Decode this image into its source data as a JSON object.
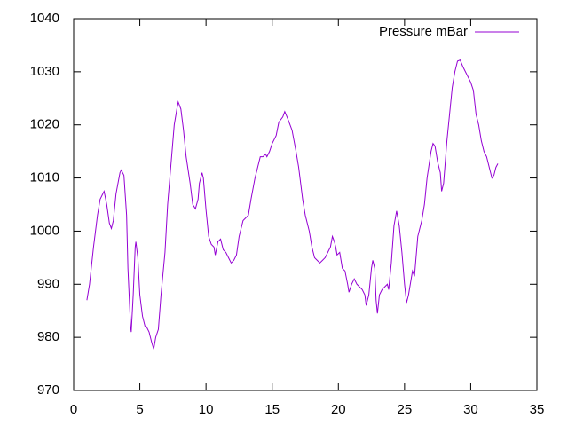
{
  "chart_data": {
    "type": "line",
    "x": [
      1,
      1.2,
      1.5,
      1.8,
      2.0,
      2.2,
      2.3,
      2.5,
      2.7,
      2.85,
      3.0,
      3.2,
      3.5,
      3.6,
      3.8,
      4.0,
      4.1,
      4.3,
      4.35,
      4.5,
      4.65,
      4.7,
      4.85,
      5.0,
      5.2,
      5.4,
      5.5,
      5.7,
      5.9,
      6.05,
      6.2,
      6.4,
      6.6,
      6.9,
      7.1,
      7.4,
      7.6,
      7.8,
      7.9,
      8.1,
      8.3,
      8.5,
      8.8,
      9.0,
      9.2,
      9.4,
      9.5,
      9.7,
      9.8,
      10.0,
      10.2,
      10.4,
      10.6,
      10.7,
      10.9,
      11.1,
      11.3,
      11.5,
      11.7,
      11.9,
      12.1,
      12.3,
      12.5,
      12.8,
      13.0,
      13.2,
      13.4,
      13.7,
      13.9,
      14.1,
      14.3,
      14.5,
      14.6,
      14.8,
      15.0,
      15.3,
      15.5,
      15.8,
      15.95,
      16.2,
      16.5,
      16.8,
      17.0,
      17.3,
      17.5,
      17.8,
      18.0,
      18.2,
      18.4,
      18.6,
      18.8,
      19.0,
      19.2,
      19.4,
      19.55,
      19.7,
      19.8,
      19.9,
      20.1,
      20.3,
      20.5,
      20.7,
      20.8,
      21.0,
      21.2,
      21.4,
      21.6,
      21.8,
      22.0,
      22.1,
      22.3,
      22.5,
      22.6,
      22.75,
      22.85,
      22.95,
      23.1,
      23.3,
      23.5,
      23.7,
      23.8,
      24.0,
      24.2,
      24.4,
      24.6,
      24.8,
      25.0,
      25.15,
      25.3,
      25.5,
      25.6,
      25.75,
      26.0,
      26.3,
      26.5,
      26.7,
      27.0,
      27.15,
      27.3,
      27.5,
      27.7,
      27.8,
      27.95,
      28.2,
      28.4,
      28.6,
      28.8,
      29.0,
      29.2,
      29.4,
      29.6,
      29.8,
      30.0,
      30.2,
      30.4,
      30.6,
      30.8,
      31.0,
      31.2,
      31.4,
      31.6,
      31.75,
      31.9,
      32.05
    ],
    "series": [
      {
        "name": "Pressure mBar",
        "color": "#9400d3",
        "values": [
          987,
          990,
          997,
          1003,
          1006,
          1007,
          1007.5,
          1005,
          1001.5,
          1000.5,
          1002,
          1007,
          1011,
          1011.5,
          1010.5,
          1003,
          993,
          982,
          981,
          988,
          997,
          998,
          995,
          988,
          984,
          982,
          982,
          981,
          979,
          977.8,
          980,
          981.5,
          988,
          996,
          1005,
          1014,
          1020,
          1023,
          1024.3,
          1023,
          1019,
          1014,
          1009,
          1005,
          1004.2,
          1006,
          1009,
          1011,
          1010,
          1004,
          999,
          997.5,
          997,
          995.5,
          998,
          998.5,
          996.5,
          996,
          995,
          994,
          994.5,
          995.5,
          999,
          1002,
          1002.5,
          1003,
          1006,
          1010,
          1012,
          1014,
          1014,
          1014.5,
          1014,
          1015,
          1016.5,
          1018,
          1020.5,
          1021.5,
          1022.5,
          1021,
          1019,
          1015,
          1012,
          1006,
          1003,
          1000,
          997,
          995,
          994.5,
          994,
          994.5,
          995,
          996,
          997,
          999,
          998,
          997,
          995.5,
          996,
          993,
          992.5,
          990,
          988.5,
          990,
          991,
          990,
          989.5,
          989,
          988,
          986,
          988,
          993,
          994.5,
          993,
          987,
          984.5,
          988,
          989,
          989.5,
          990,
          989,
          994,
          1001,
          1003.8,
          1001,
          996,
          990,
          986.5,
          988,
          991,
          992.5,
          991.5,
          999,
          1002,
          1005,
          1010,
          1015,
          1016.5,
          1016,
          1013,
          1011,
          1007.5,
          1009,
          1017,
          1022,
          1027,
          1030,
          1032,
          1032.2,
          1031,
          1030,
          1029,
          1028,
          1026.5,
          1022,
          1020,
          1017,
          1015,
          1014,
          1012,
          1010,
          1010.5,
          1012,
          1012.7
        ]
      }
    ],
    "xlim": [
      0,
      35
    ],
    "xticks": [
      0,
      5,
      10,
      15,
      20,
      25,
      30,
      35
    ],
    "ylim": [
      970,
      1040
    ],
    "yticks": [
      970,
      980,
      990,
      1000,
      1010,
      1020,
      1030,
      1040
    ],
    "legend": "top right"
  }
}
